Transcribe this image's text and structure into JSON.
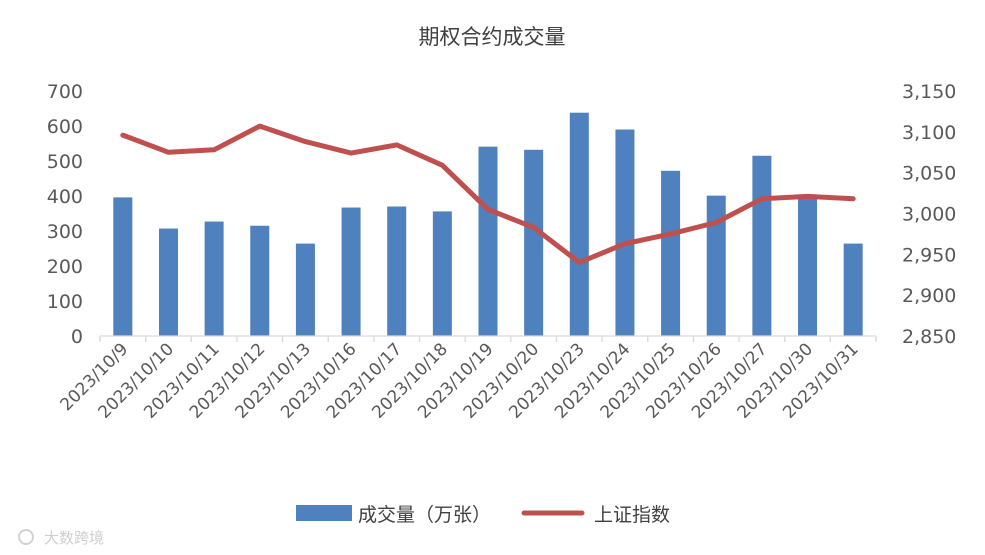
{
  "chart_data": {
    "type": "bar",
    "title": "期权合约成交量",
    "categories": [
      "2023/10/9",
      "2023/10/10",
      "2023/10/11",
      "2023/10/12",
      "2023/10/13",
      "2023/10/16",
      "2023/10/17",
      "2023/10/18",
      "2023/10/19",
      "2023/10/20",
      "2023/10/23",
      "2023/10/24",
      "2023/10/25",
      "2023/10/26",
      "2023/10/27",
      "2023/10/30",
      "2023/10/31"
    ],
    "series": [
      {
        "name": "成交量（万张）",
        "kind": "bar",
        "axis": "left",
        "color": "#4e81bd",
        "values": [
          396,
          307,
          327,
          315,
          264,
          367,
          370,
          356,
          541,
          532,
          638,
          590,
          472,
          401,
          515,
          402,
          264
        ]
      },
      {
        "name": "上证指数",
        "kind": "line",
        "axis": "right",
        "color": "#c0504d",
        "values": [
          3096,
          3075,
          3078,
          3107,
          3088,
          3074,
          3084,
          3059,
          3005,
          2983,
          2940,
          2963,
          2975,
          2989,
          3018,
          3021,
          3018
        ]
      }
    ],
    "y_left": {
      "min": 0,
      "max": 700,
      "ticks": [
        "0",
        "100",
        "200",
        "300",
        "400",
        "500",
        "600",
        "700"
      ]
    },
    "y_right": {
      "min": 2850,
      "max": 3150,
      "ticks": [
        "2,850",
        "2,900",
        "2,950",
        "3,000",
        "3,050",
        "3,100",
        "3,150"
      ]
    },
    "legend_position": "bottom",
    "grid": false
  },
  "watermark": "大数跨境"
}
